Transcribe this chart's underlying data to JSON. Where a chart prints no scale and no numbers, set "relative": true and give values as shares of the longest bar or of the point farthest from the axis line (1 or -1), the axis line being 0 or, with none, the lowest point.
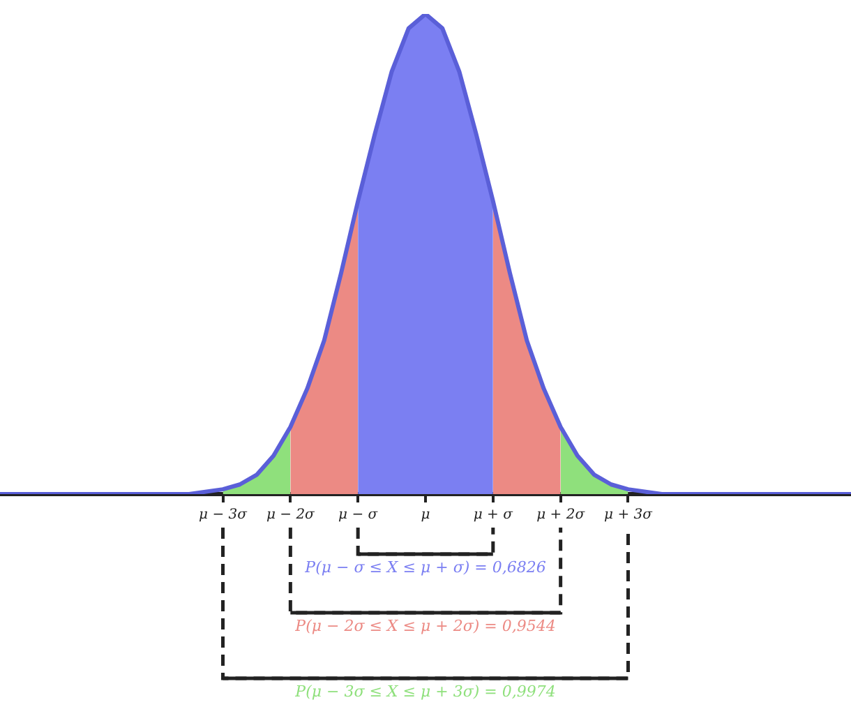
{
  "chart_data": {
    "type": "area",
    "relative": true,
    "grid": false,
    "xlim": [
      -6.3,
      6.3
    ],
    "xticks": [
      {
        "value": -3,
        "label": "μ − 3σ"
      },
      {
        "value": -2,
        "label": "μ − 2σ"
      },
      {
        "value": -1,
        "label": "μ − σ"
      },
      {
        "value": 0,
        "label": "μ"
      },
      {
        "value": 1,
        "label": "μ + σ"
      },
      {
        "value": 2,
        "label": "μ + 2σ"
      },
      {
        "value": 3,
        "label": "μ + 3σ"
      }
    ],
    "series": [
      {
        "type": "line",
        "color": "#5a5fd8",
        "x": [
          -6.3,
          -4,
          -3.5,
          -3,
          -2.75,
          -2.5,
          -2.25,
          -2,
          -1.75,
          -1.5,
          -1.25,
          -1,
          -0.75,
          -0.5,
          -0.25,
          0,
          0.25,
          0.5,
          0.75,
          1,
          1.25,
          1.5,
          1.75,
          2,
          2.25,
          2.5,
          2.75,
          3,
          3.5,
          4,
          6.3
        ],
        "values": [
          0,
          0,
          0,
          0.01,
          0.02,
          0.04,
          0.08,
          0.14,
          0.22,
          0.32,
          0.46,
          0.61,
          0.75,
          0.88,
          0.97,
          1,
          0.97,
          0.88,
          0.75,
          0.61,
          0.46,
          0.32,
          0.22,
          0.14,
          0.08,
          0.04,
          0.02,
          0.01,
          0,
          0,
          0
        ]
      },
      {
        "type": "area",
        "color": "#7b7ff2",
        "x": [
          -1,
          -0.75,
          -0.5,
          -0.25,
          0,
          0.25,
          0.5,
          0.75,
          1
        ],
        "values": [
          0.61,
          0.75,
          0.88,
          0.97,
          1,
          0.97,
          0.88,
          0.75,
          0.61
        ]
      },
      {
        "type": "area",
        "color": "#ec8a84",
        "x": [
          -2,
          -1.75,
          -1.5,
          -1.25,
          -1
        ],
        "values": [
          0.14,
          0.22,
          0.32,
          0.46,
          0.61
        ]
      },
      {
        "type": "area",
        "color": "#ec8a84",
        "x": [
          1,
          1.25,
          1.5,
          1.75,
          2
        ],
        "values": [
          0.61,
          0.46,
          0.32,
          0.22,
          0.14
        ]
      },
      {
        "type": "area",
        "color": "#8fe07c",
        "x": [
          -3,
          -2.75,
          -2.5,
          -2.25,
          -2
        ],
        "values": [
          0.01,
          0.02,
          0.04,
          0.08,
          0.14
        ]
      },
      {
        "type": "area",
        "color": "#8fe07c",
        "x": [
          2,
          2.25,
          2.5,
          2.75,
          3
        ],
        "values": [
          0.14,
          0.08,
          0.04,
          0.02,
          0.01
        ]
      }
    ],
    "annotations": [
      "P(μ − σ ≤ X ≤ μ + σ) = 0,6826",
      "P(μ − 2σ ≤ X ≤ μ + 2σ) = 0,9544",
      "P(μ − 3σ ≤ X ≤ μ + 3σ) = 0,9974"
    ]
  }
}
